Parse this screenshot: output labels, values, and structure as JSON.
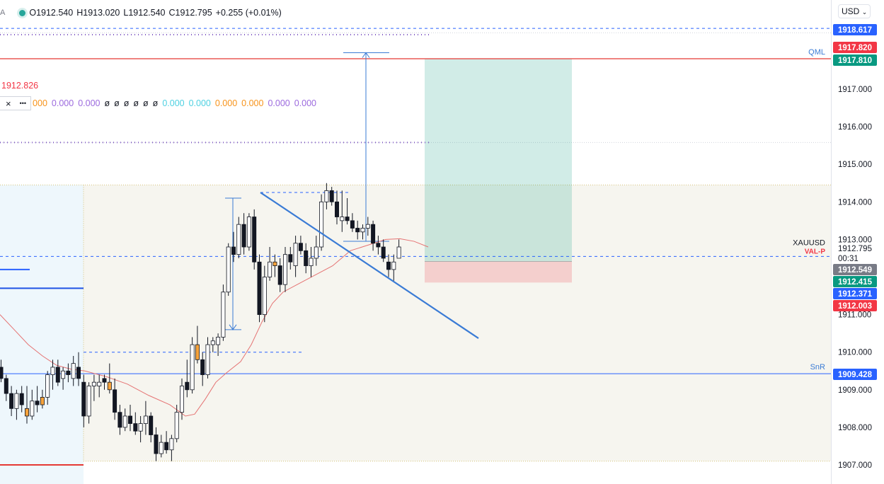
{
  "ohlc": {
    "open_label": "O",
    "open": "1912.540",
    "high_label": "H",
    "high": "1913.020",
    "low_label": "L",
    "low": "1912.540",
    "close_label": "C",
    "close": "1912.795",
    "change": "+0.255 (+0.01%)",
    "prefix": "A"
  },
  "currency": "USD",
  "indicator": {
    "value": "1912.826",
    "close_icon": "×",
    "more_icon": "•••",
    "values": [
      {
        "text": "000",
        "color": "#f7931a"
      },
      {
        "text": "0.000",
        "color": "#9c6ade"
      },
      {
        "text": "0.000",
        "color": "#9c6ade"
      },
      {
        "text": "ø",
        "color": "#131722"
      },
      {
        "text": "ø",
        "color": "#131722"
      },
      {
        "text": "ø",
        "color": "#131722"
      },
      {
        "text": "ø",
        "color": "#131722"
      },
      {
        "text": "ø",
        "color": "#131722"
      },
      {
        "text": "ø",
        "color": "#131722"
      },
      {
        "text": "0.000",
        "color": "#4dd0e1"
      },
      {
        "text": "0.000",
        "color": "#4dd0e1"
      },
      {
        "text": "0.000",
        "color": "#f7931a"
      },
      {
        "text": "0.000",
        "color": "#f7931a"
      },
      {
        "text": "0.000",
        "color": "#9c6ade"
      },
      {
        "text": "0.000",
        "color": "#9c6ade"
      }
    ]
  },
  "axis": {
    "ticks": [
      "1917.000",
      "1916.000",
      "1915.000",
      "1914.000",
      "1913.000",
      "1911.000",
      "1910.000",
      "1909.000",
      "1908.000",
      "1907.000"
    ]
  },
  "price_labels": [
    {
      "value": "1918.617",
      "bg": "#2962ff",
      "fg": "#ffffff"
    },
    {
      "value": "1917.820",
      "bg": "#f23645",
      "fg": "#ffffff"
    },
    {
      "value": "1917.810",
      "bg": "#089981",
      "fg": "#ffffff"
    },
    {
      "value": "1912.795",
      "bg": "#ffffff",
      "fg": "#131722"
    },
    {
      "value": "00:31",
      "bg": "#ffffff",
      "fg": "#131722"
    },
    {
      "value": "1912.549",
      "bg": "#787b86",
      "fg": "#ffffff"
    },
    {
      "value": "1912.415",
      "bg": "#089981",
      "fg": "#ffffff"
    },
    {
      "value": "1912.371",
      "bg": "#2962ff",
      "fg": "#ffffff"
    },
    {
      "value": "1912.003",
      "bg": "#f23645",
      "fg": "#ffffff"
    },
    {
      "value": "1909.428",
      "bg": "#2962ff",
      "fg": "#ffffff"
    }
  ],
  "chart_labels": {
    "qml": "QML",
    "snr": "SnR",
    "symbol": "XAUUSD",
    "val": "VAL-P"
  },
  "colors": {
    "up": "#ffffff",
    "down": "#131722",
    "accent": "#f7a33b",
    "blue": "#2962ff",
    "trend": "#3a7bd5",
    "ma": "#ef5350",
    "red": "#e53935"
  },
  "chart_data": {
    "type": "candlestick",
    "symbol": "XAUUSD",
    "ylim": [
      1906.8,
      1918.85
    ],
    "y_ticks": [
      1907,
      1908,
      1909,
      1910,
      1911,
      1913,
      1914,
      1915,
      1916,
      1917
    ],
    "levels": {
      "qml": 1917.81,
      "snr": 1909.428,
      "blue_dashed": 1918.617,
      "dotted_purple_1": 1918.45,
      "dotted_purple_2": 1915.58,
      "val_dashed": 1912.549
    },
    "position": {
      "entry": 1912.415,
      "target": 1917.81,
      "stop": 1912.003
    },
    "candles": [
      [
        1909.6,
        1909.8,
        1909.2,
        1909.3
      ],
      [
        1909.3,
        1909.4,
        1908.7,
        1908.9
      ],
      [
        1908.9,
        1909.1,
        1908.3,
        1908.5
      ],
      [
        1908.5,
        1909.0,
        1908.2,
        1908.9
      ],
      [
        1908.9,
        1909.1,
        1908.4,
        1908.6
      ],
      [
        1908.5,
        1909.1,
        1908.1,
        1908.3
      ],
      [
        1908.3,
        1909.0,
        1908.2,
        1908.7
      ],
      [
        1908.7,
        1909.1,
        1908.4,
        1908.6
      ],
      [
        1908.6,
        1909.0,
        1908.5,
        1908.8
      ],
      [
        1908.8,
        1909.5,
        1908.6,
        1909.4
      ],
      [
        1909.4,
        1909.8,
        1909.0,
        1909.6
      ],
      [
        1909.6,
        1909.8,
        1909.1,
        1909.2
      ],
      [
        1909.3,
        1909.6,
        1909.0,
        1909.5
      ],
      [
        1909.5,
        1909.7,
        1909.2,
        1909.4
      ],
      [
        1909.3,
        1909.9,
        1909.1,
        1909.7
      ],
      [
        1909.6,
        1910.0,
        1909.1,
        1909.3
      ],
      [
        1909.2,
        1909.4,
        1908.0,
        1908.3
      ],
      [
        1908.3,
        1909.2,
        1908.1,
        1909.1
      ],
      [
        1909.1,
        1909.4,
        1908.7,
        1909.2
      ],
      [
        1909.1,
        1909.4,
        1908.8,
        1909.2
      ],
      [
        1909.3,
        1909.4,
        1909.0,
        1909.2
      ],
      [
        1909.2,
        1909.7,
        1908.9,
        1909.0
      ],
      [
        1909.0,
        1909.3,
        1908.2,
        1908.4
      ],
      [
        1908.4,
        1908.6,
        1907.8,
        1908.0
      ],
      [
        1908.0,
        1908.5,
        1907.9,
        1908.3
      ],
      [
        1908.3,
        1908.6,
        1907.9,
        1908.1
      ],
      [
        1908.1,
        1908.4,
        1907.8,
        1907.9
      ],
      [
        1907.9,
        1908.3,
        1907.6,
        1908.1
      ],
      [
        1908.1,
        1908.7,
        1907.8,
        1908.3
      ],
      [
        1908.3,
        1908.4,
        1907.6,
        1907.8
      ],
      [
        1907.8,
        1908.0,
        1907.1,
        1907.3
      ],
      [
        1907.3,
        1907.8,
        1907.2,
        1907.6
      ],
      [
        1907.6,
        1907.9,
        1907.3,
        1907.4
      ],
      [
        1907.4,
        1907.8,
        1907.1,
        1907.7
      ],
      [
        1907.7,
        1908.6,
        1907.6,
        1908.4
      ],
      [
        1908.4,
        1909.3,
        1908.2,
        1909.1
      ],
      [
        1909.2,
        1909.8,
        1908.8,
        1909.0
      ],
      [
        1909.0,
        1910.4,
        1908.9,
        1910.2
      ],
      [
        1910.2,
        1910.7,
        1909.7,
        1909.8
      ],
      [
        1909.8,
        1910.0,
        1909.1,
        1909.4
      ],
      [
        1909.4,
        1910.4,
        1909.3,
        1910.2
      ],
      [
        1910.2,
        1910.4,
        1910.0,
        1910.3
      ],
      [
        1910.2,
        1910.5,
        1909.9,
        1910.4
      ],
      [
        1910.4,
        1911.8,
        1910.3,
        1911.6
      ],
      [
        1911.6,
        1912.9,
        1911.5,
        1912.8
      ],
      [
        1912.8,
        1913.2,
        1912.4,
        1912.6
      ],
      [
        1912.6,
        1913.6,
        1912.5,
        1913.4
      ],
      [
        1913.4,
        1913.7,
        1912.6,
        1912.8
      ],
      [
        1912.8,
        1913.7,
        1912.7,
        1913.6
      ],
      [
        1913.6,
        1913.8,
        1912.2,
        1912.4
      ],
      [
        1912.4,
        1912.6,
        1910.8,
        1911.0
      ],
      [
        1911.0,
        1912.3,
        1910.8,
        1912.0
      ],
      [
        1912.0,
        1912.8,
        1911.9,
        1912.4
      ],
      [
        1912.4,
        1912.6,
        1912.0,
        1912.3
      ],
      [
        1912.3,
        1912.5,
        1911.6,
        1911.8
      ],
      [
        1911.8,
        1912.8,
        1911.6,
        1912.6
      ],
      [
        1912.6,
        1912.8,
        1912.2,
        1912.4
      ],
      [
        1912.3,
        1913.1,
        1912.0,
        1912.9
      ],
      [
        1912.9,
        1913.1,
        1912.6,
        1912.7
      ],
      [
        1912.7,
        1912.9,
        1912.1,
        1912.3
      ],
      [
        1912.3,
        1912.8,
        1912.0,
        1912.5
      ],
      [
        1912.5,
        1913.1,
        1912.3,
        1912.8
      ],
      [
        1912.8,
        1914.2,
        1912.7,
        1914.0
      ],
      [
        1914.0,
        1914.5,
        1913.8,
        1914.3
      ],
      [
        1914.3,
        1914.4,
        1913.9,
        1914.0
      ],
      [
        1914.0,
        1914.3,
        1913.4,
        1913.6
      ],
      [
        1913.5,
        1914.3,
        1913.2,
        1913.6
      ],
      [
        1913.6,
        1914.1,
        1913.4,
        1913.5
      ],
      [
        1913.5,
        1913.7,
        1913.2,
        1913.3
      ],
      [
        1913.3,
        1913.5,
        1913.0,
        1913.2
      ],
      [
        1913.2,
        1913.4,
        1913.0,
        1913.3
      ],
      [
        1913.3,
        1913.6,
        1913.1,
        1913.4
      ],
      [
        1913.4,
        1913.5,
        1912.7,
        1912.9
      ],
      [
        1912.9,
        1913.1,
        1912.6,
        1912.8
      ],
      [
        1912.8,
        1913.0,
        1912.4,
        1912.5
      ],
      [
        1912.4,
        1912.6,
        1912.0,
        1912.2
      ],
      [
        1912.2,
        1912.6,
        1911.9,
        1912.4
      ],
      [
        1912.5,
        1913.0,
        1912.5,
        1912.8
      ]
    ]
  }
}
